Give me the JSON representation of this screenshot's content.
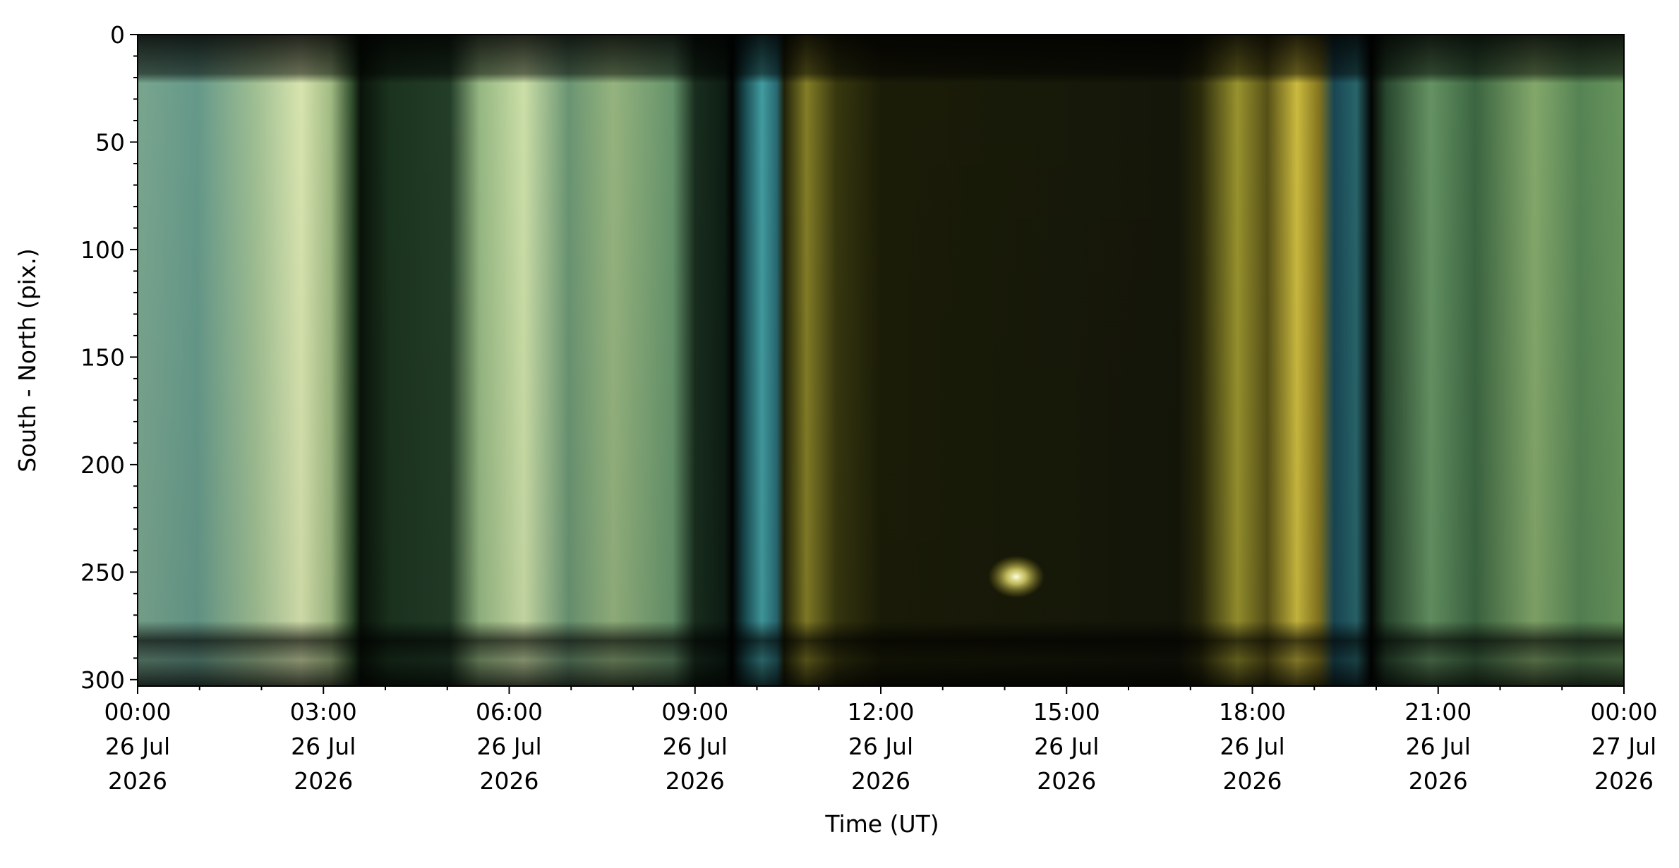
{
  "chart_data": {
    "type": "keogram",
    "xlabel": "Time (UT)",
    "ylabel": "South - North (pix.)",
    "xlim": [
      "2026-07-26T00:00",
      "2026-07-27T00:00"
    ],
    "ylim": [
      303,
      0
    ],
    "yticks": [
      0,
      50,
      100,
      150,
      200,
      250,
      300
    ],
    "yminorticks": [
      10,
      20,
      30,
      40,
      60,
      70,
      80,
      90,
      110,
      120,
      130,
      140,
      160,
      170,
      180,
      190,
      210,
      220,
      230,
      240,
      260,
      270,
      280,
      290
    ],
    "xticks": [
      {
        "value": "2026-07-26T00:00",
        "label": [
          "00:00",
          "26 Jul",
          "2026"
        ]
      },
      {
        "value": "2026-07-26T03:00",
        "label": [
          "03:00",
          "26 Jul",
          "2026"
        ]
      },
      {
        "value": "2026-07-26T06:00",
        "label": [
          "06:00",
          "26 Jul",
          "2026"
        ]
      },
      {
        "value": "2026-07-26T09:00",
        "label": [
          "09:00",
          "26 Jul",
          "2026"
        ]
      },
      {
        "value": "2026-07-26T12:00",
        "label": [
          "12:00",
          "26 Jul",
          "2026"
        ]
      },
      {
        "value": "2026-07-26T15:00",
        "label": [
          "15:00",
          "26 Jul",
          "2026"
        ]
      },
      {
        "value": "2026-07-26T18:00",
        "label": [
          "18:00",
          "26 Jul",
          "2026"
        ]
      },
      {
        "value": "2026-07-26T21:00",
        "label": [
          "21:00",
          "26 Jul",
          "2026"
        ]
      },
      {
        "value": "2026-07-27T00:00",
        "label": [
          "00:00",
          "27 Jul",
          "2026"
        ]
      }
    ],
    "xminorticks": [
      "2026-07-26T01:00",
      "2026-07-26T02:00",
      "2026-07-26T04:00",
      "2026-07-26T05:00",
      "2026-07-26T07:00",
      "2026-07-26T08:00",
      "2026-07-26T10:00",
      "2026-07-26T11:00",
      "2026-07-26T13:00",
      "2026-07-26T14:00",
      "2026-07-26T16:00",
      "2026-07-26T17:00",
      "2026-07-26T19:00",
      "2026-07-26T20:00",
      "2026-07-26T22:00",
      "2026-07-26T23:00"
    ]
  }
}
